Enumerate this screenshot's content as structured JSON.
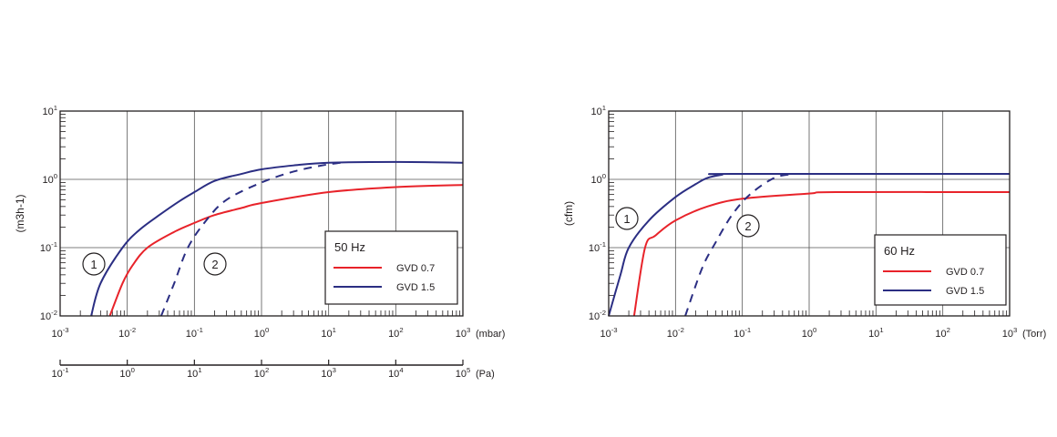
{
  "colors": {
    "red": "#e8232a",
    "blue": "#2b2e83",
    "grid": "#555555",
    "frame": "#231f20"
  },
  "chart_data": [
    {
      "type": "line",
      "x_scale": "log",
      "y_scale": "log",
      "xlim": [
        0.001,
        1000
      ],
      "ylim": [
        0.01,
        10
      ],
      "x_ticks": [
        "10-3",
        "10-2",
        "10-1",
        "100",
        "101",
        "102",
        "103"
      ],
      "x_unit": "(mbar)",
      "x2_ticks": [
        "10-1",
        "100",
        "101",
        "102",
        "103",
        "104",
        "105"
      ],
      "x2_unit": "(Pa)",
      "y_ticks": [
        "10-2",
        "10-1",
        "100",
        "101"
      ],
      "ylabel": "(m3h-1)",
      "grid": true,
      "legend": {
        "title": "50 Hz",
        "placement": "bottom-right",
        "entries": [
          "GVD 0.7",
          "GVD 1.5"
        ]
      },
      "annotations": [
        "1",
        "2"
      ],
      "series": [
        {
          "name": "GVD 1.5",
          "color": "blue",
          "dash": false,
          "x": [
            0.0029,
            0.004,
            0.0085,
            0.015,
            0.03,
            0.06,
            0.1,
            0.2,
            0.5,
            1,
            3,
            10,
            100,
            1000
          ],
          "y": [
            0.01,
            0.03,
            0.1,
            0.18,
            0.3,
            0.48,
            0.65,
            0.95,
            1.2,
            1.4,
            1.6,
            1.75,
            1.8,
            1.75
          ]
        },
        {
          "name": "GVD 0.7",
          "color": "red",
          "dash": false,
          "x": [
            0.0055,
            0.0085,
            0.012,
            0.02,
            0.05,
            0.1,
            0.2,
            0.5,
            1,
            10,
            100,
            1000
          ],
          "y": [
            0.01,
            0.03,
            0.055,
            0.1,
            0.17,
            0.23,
            0.3,
            0.38,
            0.45,
            0.65,
            0.77,
            0.83
          ]
        },
        {
          "color": "blue",
          "dash": true,
          "x": [
            0.032,
            0.05,
            0.08,
            0.15,
            0.3,
            1,
            3,
            8,
            15
          ],
          "y": [
            0.01,
            0.03,
            0.1,
            0.25,
            0.5,
            0.9,
            1.3,
            1.6,
            1.75
          ]
        }
      ]
    },
    {
      "type": "line",
      "x_scale": "log",
      "y_scale": "log",
      "xlim": [
        0.001,
        1000
      ],
      "ylim": [
        0.01,
        10
      ],
      "x_ticks": [
        "10-3",
        "10-2",
        "10-1",
        "100",
        "101",
        "102",
        "103"
      ],
      "x_unit": "(Torr)",
      "y_ticks": [
        "10-2",
        "10-1",
        "100",
        "101"
      ],
      "ylabel": "(cfm)",
      "grid": true,
      "legend": {
        "title": "60 Hz",
        "placement": "bottom-right",
        "entries": [
          "GVD 0.7",
          "GVD 1.5"
        ]
      },
      "annotations": [
        "1",
        "2"
      ],
      "series": [
        {
          "name": "GVD 1.5",
          "color": "blue",
          "dash": false,
          "x": [
            0.001,
            0.0015,
            0.002,
            0.004,
            0.01,
            0.02,
            0.03,
            0.05,
            0.07,
            1000
          ],
          "y": [
            0.01,
            0.04,
            0.1,
            0.25,
            0.55,
            0.85,
            1.05,
            1.17,
            1.2,
            1.2
          ]
        },
        {
          "name": "GVD 0.7",
          "color": "red",
          "dash": false,
          "x": [
            0.0024,
            0.0035,
            0.005,
            0.01,
            0.03,
            0.1,
            1,
            2.5,
            1000
          ],
          "y": [
            0.01,
            0.1,
            0.15,
            0.25,
            0.4,
            0.52,
            0.62,
            0.65,
            0.65
          ]
        },
        {
          "color": "blue",
          "dash": true,
          "x": [
            0.014,
            0.025,
            0.04,
            0.07,
            0.13,
            0.3,
            0.6
          ],
          "y": [
            0.01,
            0.05,
            0.12,
            0.3,
            0.6,
            1.05,
            1.2
          ]
        }
      ]
    }
  ]
}
